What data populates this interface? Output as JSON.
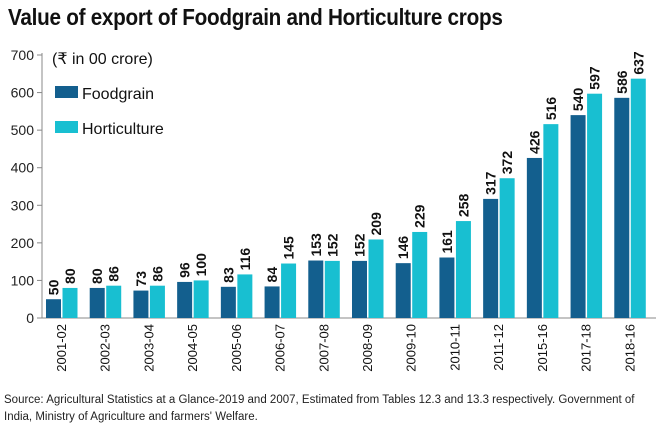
{
  "chart_data": {
    "type": "bar",
    "title": "Value of export of Foodgrain and Horticulture crops",
    "unit_label": "(₹ in 00 crore)",
    "xlabel": "",
    "ylabel": "",
    "ylim": [
      0,
      700
    ],
    "yticks": [
      0,
      100,
      200,
      300,
      400,
      500,
      600,
      700
    ],
    "legend_position": "top-left",
    "categories": [
      "2001-02",
      "2002-03",
      "2003-04",
      "2004-05",
      "2005-06",
      "2006-07",
      "2007-08",
      "2008-09",
      "2009-10",
      "2010-11",
      "2011-12",
      "2015-16",
      "2017-18",
      "2018-16"
    ],
    "series": [
      {
        "name": "Foodgrain",
        "color": "#135f8e",
        "values": [
          50,
          80,
          73,
          96,
          83,
          84,
          153,
          152,
          146,
          161,
          317,
          426,
          540,
          586
        ]
      },
      {
        "name": "Horticulture",
        "color": "#18bfd1",
        "values": [
          80,
          86,
          86,
          100,
          116,
          145,
          152,
          209,
          229,
          258,
          372,
          516,
          597,
          637
        ]
      }
    ]
  },
  "source": "Source: Agricultural Statistics at a Glance-2019 and 2007, Estimated from Tables 12.3 and 13.3 respectively. Government of India, Ministry of Agriculture and farmers' Welfare."
}
